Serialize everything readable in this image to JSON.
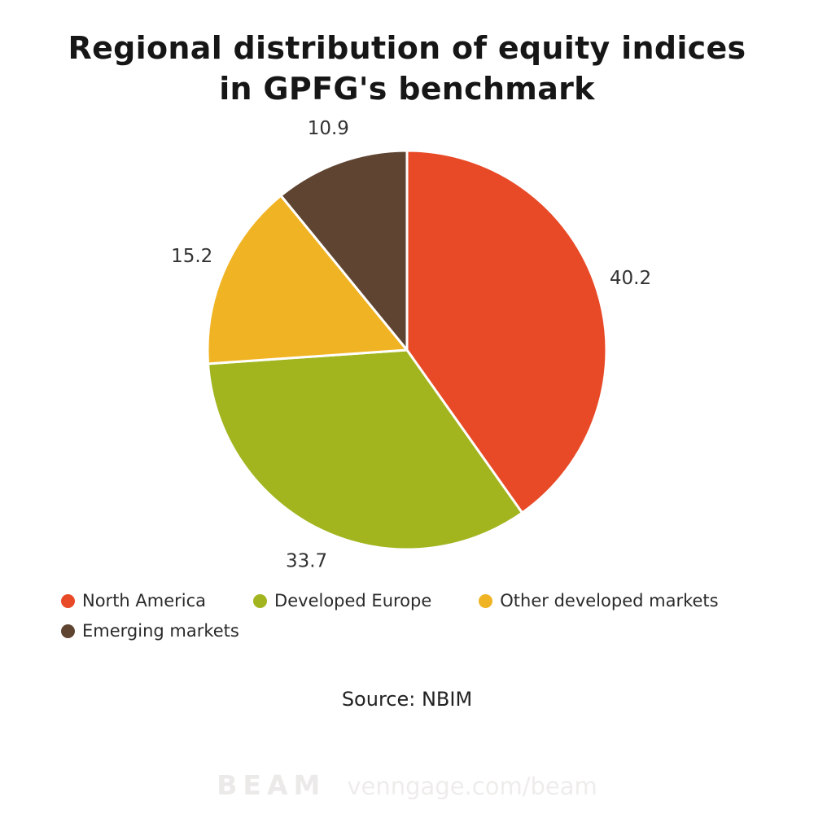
{
  "title": "Regional distribution of equity indices in GPFG's benchmark",
  "source": "Source: NBIM",
  "watermark": {
    "logo": "BEAM",
    "url": "venngage.com/beam"
  },
  "chart_data": {
    "type": "pie",
    "labels": [
      "North America",
      "Developed Europe",
      "Other developed markets",
      "Emerging markets"
    ],
    "values": [
      40.2,
      33.7,
      15.2,
      10.9
    ],
    "value_labels": [
      "40.2",
      "33.7",
      "15.2",
      "10.9"
    ],
    "colors": [
      "#e84a27",
      "#a2b51f",
      "#f0b323",
      "#5f4432"
    ],
    "slice_stroke_color": "#ffffff",
    "start_angle_deg": -90,
    "direction": "clockwise",
    "legend_position": "bottom-left",
    "title": "Regional distribution of equity indices in GPFG's benchmark"
  }
}
